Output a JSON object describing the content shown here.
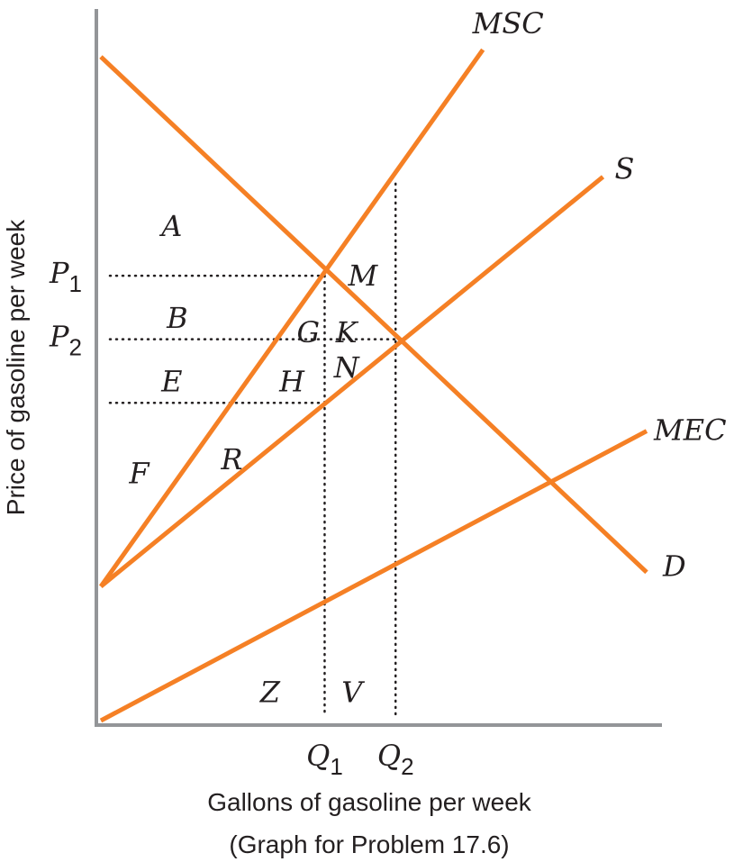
{
  "chart_data": {
    "type": "line",
    "xlabel": "Gallons of gasoline per week",
    "ylabel": "Price of gasoline per week",
    "caption": "(Graph for Problem 17.6)",
    "xlim": [
      0,
      10
    ],
    "ylim": [
      0,
      10
    ],
    "series": [
      {
        "name": "D",
        "x": [
          0,
          10
        ],
        "y": [
          9.4,
          2.1
        ]
      },
      {
        "name": "S",
        "x": [
          0,
          9.2
        ],
        "y": [
          1.9,
          7.7
        ]
      },
      {
        "name": "MSC",
        "x": [
          0,
          7.0
        ],
        "y": [
          1.9,
          9.5
        ]
      },
      {
        "name": "MEC",
        "x": [
          0,
          10
        ],
        "y": [
          0,
          4.1
        ]
      }
    ],
    "reference_lines": {
      "P1": {
        "label_base": "P",
        "label_sub": "1",
        "y": 6.3
      },
      "P2": {
        "label_base": "P",
        "label_sub": "2",
        "y": 5.4
      },
      "lower": {
        "y": 4.5
      },
      "Q1": {
        "label_base": "Q",
        "label_sub": "1",
        "x": 4.1
      },
      "Q2": {
        "label_base": "Q",
        "label_sub": "2",
        "x": 5.4
      }
    },
    "area_labels": [
      {
        "text": "A",
        "x": 1.3,
        "y": 7.0
      },
      {
        "text": "B",
        "x": 1.4,
        "y": 5.7
      },
      {
        "text": "E",
        "x": 1.3,
        "y": 4.8
      },
      {
        "text": "F",
        "x": 0.7,
        "y": 3.5
      },
      {
        "text": "G",
        "x": 3.8,
        "y": 5.5
      },
      {
        "text": "K",
        "x": 4.5,
        "y": 5.5
      },
      {
        "text": "M",
        "x": 4.8,
        "y": 6.3
      },
      {
        "text": "N",
        "x": 4.5,
        "y": 5.0
      },
      {
        "text": "H",
        "x": 3.5,
        "y": 4.8
      },
      {
        "text": "R",
        "x": 2.4,
        "y": 3.7
      },
      {
        "text": "Z",
        "x": 3.1,
        "y": 0.4
      },
      {
        "text": "V",
        "x": 4.6,
        "y": 0.4
      }
    ],
    "colors": {
      "curve": "#f58025",
      "axis": "#939598",
      "guide": "#231f20",
      "text": "#231f20"
    },
    "grid": false
  }
}
